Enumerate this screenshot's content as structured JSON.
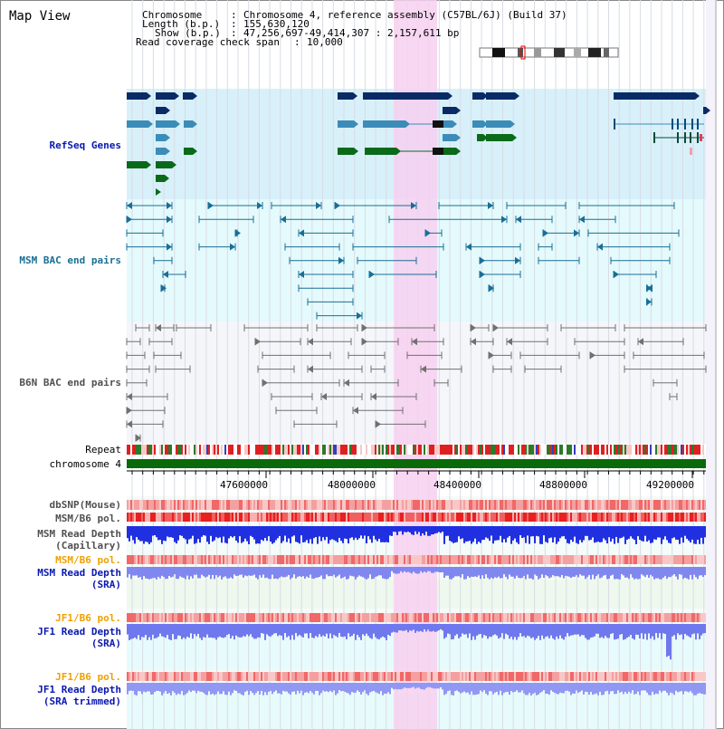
{
  "header": {
    "title": "Map View",
    "chromosome_key": "Chromosome",
    "chromosome_value": "Chromosome 4, reference assembly (C57BL/6J) (Build 37)",
    "length_key": "Length (b.p.)",
    "length_value": "155,630,120",
    "show_key": "Show (b.p.)",
    "show_value": "47,256,697-49,414,307 : 2,157,611 bp",
    "span_key": "Read coverage check span",
    "span_value": "10,000"
  },
  "tracks": {
    "refseq": "RefSeq Genes",
    "msm_bac": "MSM BAC end pairs",
    "b6n_bac": "B6N BAC end pairs",
    "repeat": "Repeat",
    "chromosome": "chromosome 4",
    "dbsnp": "dbSNP(Mouse)",
    "msm_b6_pol_1": "MSM/B6 pol.",
    "msm_depth_cap_1": "MSM Read Depth",
    "msm_depth_cap_2": "(Capillary)",
    "msm_b6_pol_2": "MSM/B6 pol.",
    "msm_depth_sra_1": "MSM Read Depth",
    "msm_depth_sra_2": "(SRA)",
    "jf1_b6_pol_1": "JF1/B6 pol.",
    "jf1_depth_sra_1": "JF1 Read Depth",
    "jf1_depth_sra_2": "(SRA)",
    "jf1_b6_pol_2": "JF1/B6 pol.",
    "jf1_depth_trim_1": "JF1 Read Depth",
    "jf1_depth_trim_2": "(SRA trimmed)"
  },
  "axis": {
    "ticks": [
      "47600000",
      "48000000",
      "48400000",
      "48800000",
      "49200000"
    ]
  },
  "colors": {
    "refseq_bg": "#d8f0fa",
    "msm_bac_bg": "#e4fafc",
    "b6n_bac_bg": "#f4f6fa",
    "highlight": "#f7d0f0",
    "refseq_dark": "#0a2a66",
    "refseq_mid": "#3c8cb8",
    "refseq_green": "#0a6a1a",
    "msm_line": "#1a6e96",
    "b6n_line": "#707070",
    "chrom_bar": "#0a6a0a",
    "depth_blue": "#2030e0",
    "depth_light": "#8088f0",
    "pol_red": "#f03030",
    "label_blue": "#0a18b0",
    "label_teal": "#1a6e96",
    "label_gray": "#505050",
    "label_orange": "#f0a000"
  }
}
